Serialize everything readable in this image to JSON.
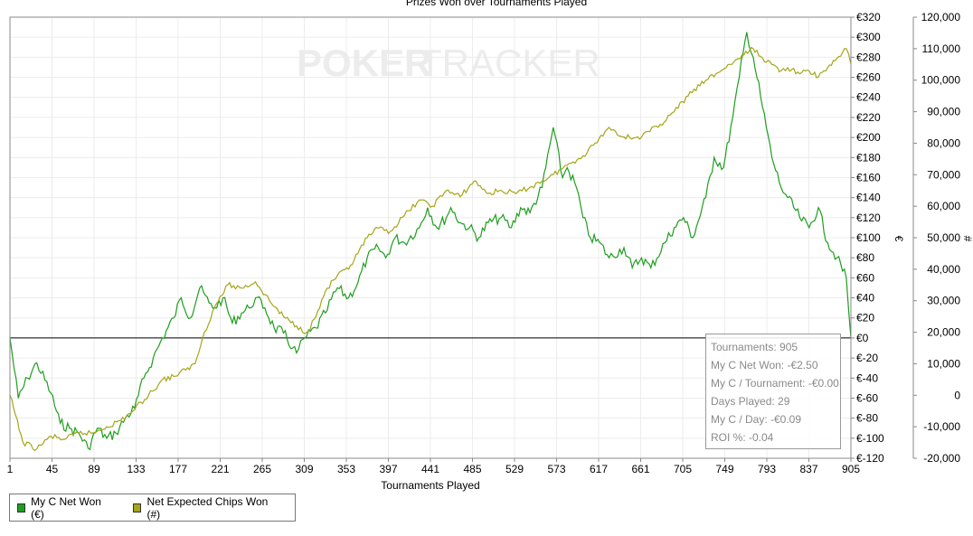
{
  "chart_data": {
    "type": "line",
    "title": "Prizes Won over Tournaments Played",
    "xlabel": "Tournaments Played",
    "ylabel_left": "€",
    "ylabel_right": "#",
    "xlim": [
      1,
      905
    ],
    "x_ticks": [
      "1",
      "45",
      "89",
      "133",
      "177",
      "221",
      "265",
      "309",
      "353",
      "397",
      "441",
      "485",
      "529",
      "573",
      "617",
      "661",
      "705",
      "749",
      "793",
      "837",
      "905"
    ],
    "y_left_range": [
      -120,
      320
    ],
    "y_left_ticks": [
      "€320",
      "€300",
      "€280",
      "€260",
      "€240",
      "€220",
      "€200",
      "€180",
      "€160",
      "€140",
      "€120",
      "€100",
      "€80",
      "€60",
      "€40",
      "€20",
      "€0",
      "€-20",
      "€-40",
      "€-60",
      "€-80",
      "€-100",
      "€-120"
    ],
    "y_right_range": [
      -20000,
      120000
    ],
    "y_right_ticks": [
      "120,000",
      "110,000",
      "100,000",
      "90,000",
      "80,000",
      "70,000",
      "60,000",
      "50,000",
      "40,000",
      "30,000",
      "20,000",
      "10,000",
      "0",
      "-10,000",
      "-20,000"
    ],
    "grid": true,
    "legend_position": "bottom-left",
    "series": [
      {
        "name": "My C Net Won (€)",
        "axis": "left",
        "color": "#1e9e1e",
        "x": [
          1,
          10,
          20,
          30,
          45,
          55,
          65,
          75,
          85,
          95,
          105,
          115,
          125,
          135,
          145,
          155,
          165,
          177,
          185,
          195,
          205,
          215,
          221,
          230,
          240,
          250,
          258,
          265,
          275,
          285,
          295,
          305,
          309,
          318,
          330,
          340,
          353,
          365,
          375,
          385,
          397,
          405,
          415,
          425,
          441,
          450,
          460,
          470,
          475,
          485,
          495,
          505,
          515,
          529,
          540,
          550,
          560,
          573,
          585,
          595,
          600,
          610,
          617,
          625,
          635,
          645,
          661,
          670,
          680,
          690,
          705,
          715,
          725,
          735,
          749,
          758,
          768,
          778,
          785,
          793,
          800,
          810,
          820,
          830,
          837,
          850,
          860,
          870,
          880,
          890,
          900,
          905
        ],
        "values": [
          0,
          -60,
          -40,
          -25,
          -55,
          -85,
          -90,
          -95,
          -110,
          -90,
          -100,
          -95,
          -80,
          -70,
          -40,
          -20,
          0,
          20,
          40,
          20,
          50,
          35,
          30,
          40,
          15,
          25,
          30,
          40,
          30,
          10,
          5,
          -10,
          -15,
          0,
          10,
          25,
          50,
          40,
          55,
          80,
          90,
          80,
          100,
          95,
          110,
          130,
          110,
          120,
          130,
          115,
          110,
          100,
          115,
          120,
          110,
          130,
          125,
          150,
          210,
          160,
          170,
          150,
          120,
          100,
          95,
          80,
          90,
          70,
          80,
          70,
          95,
          110,
          120,
          100,
          140,
          180,
          170,
          220,
          260,
          305,
          280,
          230,
          180,
          150,
          140,
          120,
          110,
          130,
          95,
          80,
          60,
          0
        ]
      },
      {
        "name": "Net Expected Chips Won (#)",
        "axis": "right",
        "color": "#a5a518",
        "x": [
          1,
          15,
          30,
          45,
          60,
          75,
          90,
          105,
          120,
          133,
          150,
          165,
          177,
          190,
          200,
          210,
          221,
          235,
          250,
          265,
          280,
          295,
          309,
          320,
          330,
          340,
          353,
          365,
          375,
          385,
          397,
          410,
          425,
          441,
          455,
          470,
          485,
          500,
          515,
          529,
          545,
          560,
          573,
          585,
          600,
          617,
          630,
          645,
          661,
          680,
          700,
          715,
          730,
          749,
          760,
          775,
          790,
          800,
          810,
          820,
          830,
          837,
          850,
          860,
          870,
          880,
          890,
          900,
          905
        ],
        "values": [
          0,
          -15000,
          -17000,
          -13000,
          -14000,
          -12000,
          -12000,
          -10000,
          -8000,
          -5000,
          0,
          5000,
          6000,
          8000,
          10000,
          20000,
          28000,
          35000,
          34000,
          36000,
          30000,
          25000,
          22000,
          20000,
          25000,
          33000,
          38000,
          40000,
          45000,
          50000,
          53000,
          52000,
          57000,
          62000,
          60000,
          65000,
          63000,
          68000,
          64000,
          65000,
          64000,
          66000,
          68000,
          70000,
          73000,
          76000,
          80000,
          85000,
          82000,
          82000,
          86000,
          90000,
          95000,
          100000,
          102000,
          105000,
          108000,
          110000,
          107000,
          105000,
          103000,
          104000,
          102000,
          103000,
          101000,
          104000,
          107000,
          110000,
          105000
        ]
      }
    ]
  },
  "tooltip": {
    "lines": [
      "Tournaments: 905",
      "My C Net Won: -€2.50",
      "My C / Tournament: -€0.00",
      "Days Played: 29",
      "My C / Day: -€0.09",
      "ROI %: -0.04"
    ]
  },
  "watermark": {
    "text_a": "POKER",
    "text_b": "TRACKER"
  }
}
